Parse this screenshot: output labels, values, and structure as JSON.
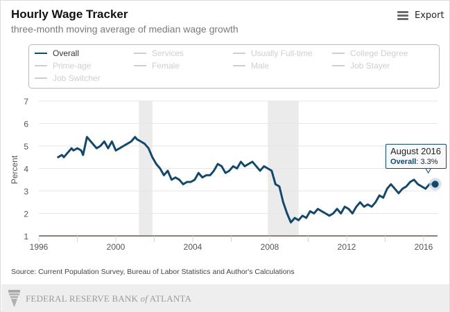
{
  "header": {
    "title": "Hourly Wage Tracker",
    "subtitle": "three-month moving average of median wage growth",
    "export_label": "Export",
    "export_icon": "hamburger-menu-icon"
  },
  "legend": {
    "items": [
      {
        "label": "Overall",
        "active": true
      },
      {
        "label": "Services",
        "active": false
      },
      {
        "label": "Usually Full-time",
        "active": false
      },
      {
        "label": "College Degree",
        "active": false
      },
      {
        "label": "Prime-age",
        "active": false
      },
      {
        "label": "Female",
        "active": false
      },
      {
        "label": "Male",
        "active": false
      },
      {
        "label": "Job Stayer",
        "active": false
      },
      {
        "label": "Job Switcher",
        "active": false
      }
    ]
  },
  "tooltip": {
    "date": "August 2016",
    "series": "Overall",
    "value": "3.3%"
  },
  "source": "Source: Current Population Survey, Bureau of Labor Statistics and Author's Calculations",
  "footer": {
    "bank_name_pre": "FEDERAL RESERVE BANK ",
    "bank_name_of": "of",
    "bank_name_post": " ATLANTA"
  },
  "colors": {
    "series": "#13486b",
    "recession": "#ebebeb",
    "grid": "#e6e6e6",
    "axis": "#8a7f72"
  },
  "chart_data": {
    "type": "line",
    "title": "Hourly Wage Tracker",
    "subtitle": "three-month moving average of median wage growth",
    "xlabel": "",
    "ylabel": "Percent",
    "xlim": [
      1996,
      2017
    ],
    "ylim": [
      1,
      7
    ],
    "x_ticks": [
      1996,
      2000,
      2004,
      2008,
      2012,
      2016
    ],
    "y_ticks": [
      1,
      2,
      3,
      4,
      5,
      6,
      7
    ],
    "grid": true,
    "legend_position": "top",
    "recessions": [
      [
        2001.2,
        2001.9
      ],
      [
        2007.9,
        2009.5
      ]
    ],
    "series": [
      {
        "name": "Overall",
        "x": [
          1997.0,
          1997.2,
          1997.3,
          1997.5,
          1997.7,
          1997.8,
          1998.0,
          1998.2,
          1998.3,
          1998.5,
          1998.7,
          1998.9,
          1999.0,
          1999.2,
          1999.4,
          1999.6,
          1999.8,
          2000.0,
          2000.2,
          2000.4,
          2000.6,
          2000.8,
          2001.0,
          2001.1,
          2001.3,
          2001.5,
          2001.7,
          2001.9,
          2002.1,
          2002.3,
          2002.5,
          2002.7,
          2002.9,
          2003.1,
          2003.3,
          2003.5,
          2003.7,
          2003.9,
          2004.1,
          2004.3,
          2004.5,
          2004.7,
          2004.9,
          2005.1,
          2005.3,
          2005.5,
          2005.7,
          2005.9,
          2006.1,
          2006.3,
          2006.5,
          2006.7,
          2006.9,
          2007.1,
          2007.3,
          2007.5,
          2007.7,
          2007.9,
          2008.1,
          2008.3,
          2008.5,
          2008.7,
          2008.9,
          2009.1,
          2009.3,
          2009.5,
          2009.7,
          2009.9,
          2010.1,
          2010.3,
          2010.5,
          2010.7,
          2010.9,
          2011.1,
          2011.3,
          2011.5,
          2011.7,
          2011.9,
          2012.1,
          2012.3,
          2012.5,
          2012.7,
          2012.9,
          2013.1,
          2013.3,
          2013.5,
          2013.7,
          2013.9,
          2014.1,
          2014.3,
          2014.5,
          2014.7,
          2014.9,
          2015.1,
          2015.3,
          2015.5,
          2015.7,
          2015.9,
          2016.1,
          2016.3,
          2016.6
        ],
        "values": [
          4.5,
          4.6,
          4.5,
          4.7,
          4.9,
          4.8,
          4.9,
          4.8,
          4.6,
          5.4,
          5.2,
          5.0,
          4.9,
          5.0,
          5.2,
          4.9,
          5.2,
          4.8,
          4.9,
          5.0,
          5.1,
          5.2,
          5.4,
          5.3,
          5.2,
          5.1,
          4.9,
          4.5,
          4.2,
          4.0,
          3.7,
          3.9,
          3.5,
          3.6,
          3.5,
          3.3,
          3.4,
          3.4,
          3.5,
          3.8,
          3.6,
          3.7,
          3.7,
          3.9,
          4.2,
          4.1,
          3.8,
          3.9,
          4.1,
          4.0,
          4.3,
          4.1,
          4.2,
          4.3,
          4.1,
          3.9,
          4.1,
          4.0,
          3.9,
          3.3,
          3.2,
          2.5,
          2.0,
          1.6,
          1.8,
          1.7,
          1.9,
          1.8,
          2.1,
          2.0,
          2.2,
          2.1,
          2.0,
          1.9,
          2.0,
          2.2,
          2.0,
          2.3,
          2.2,
          2.0,
          2.3,
          2.5,
          2.3,
          2.4,
          2.3,
          2.5,
          2.8,
          2.7,
          3.1,
          3.3,
          3.1,
          2.9,
          3.1,
          3.2,
          3.4,
          3.5,
          3.3,
          3.2,
          3.1,
          3.3,
          3.3
        ]
      }
    ],
    "highlight": {
      "label": "August 2016",
      "series": "Overall",
      "value": 3.3
    }
  }
}
